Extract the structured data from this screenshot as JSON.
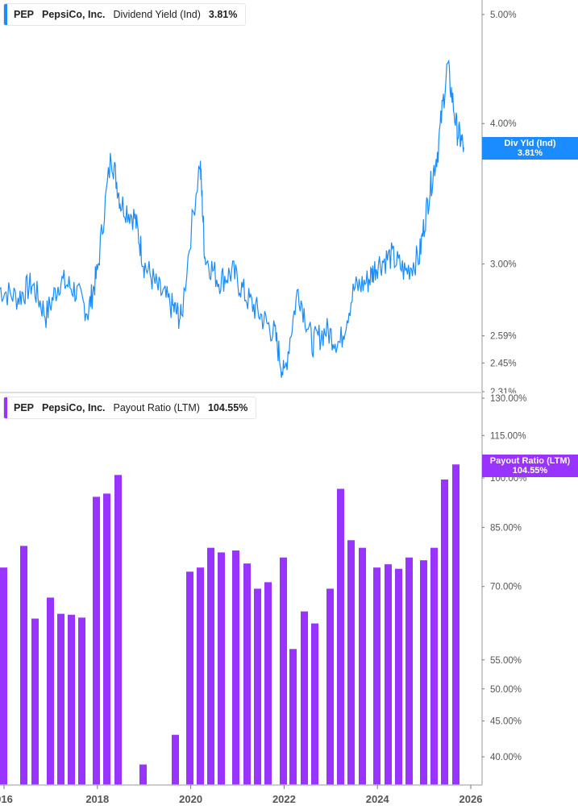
{
  "chart_data": [
    {
      "type": "line",
      "title": "PEP PepsiCo, Inc. Dividend Yield (Ind) 3.81%",
      "legend": {
        "ticker": "PEP",
        "company": "PepsiCo, Inc.",
        "metric": "Dividend Yield (Ind)",
        "value": "3.81%"
      },
      "color": "#1a8cff",
      "y_scale": "log",
      "y_ticks": [
        "5.00%",
        "4.00%",
        "3.00%",
        "2.59%",
        "2.45%",
        "2.31%"
      ],
      "ylim": [
        2.31,
        5.2
      ],
      "current_flag": {
        "label": "Div Yld (Ind)",
        "value": "3.81%"
      },
      "x": [
        2015.9,
        2016.3,
        2016.6,
        2016.9,
        2017.2,
        2017.5,
        2017.8,
        2018.0,
        2018.3,
        2018.5,
        2018.8,
        2019.0,
        2019.3,
        2019.6,
        2019.8,
        2020.2,
        2020.3,
        2020.6,
        2020.9,
        2021.2,
        2021.5,
        2021.8,
        2022.0,
        2022.3,
        2022.6,
        2022.9,
        2023.2,
        2023.5,
        2023.8,
        2024.0,
        2024.3,
        2024.6,
        2024.9,
        2025.1,
        2025.3,
        2025.5,
        2025.7,
        2025.85
      ],
      "values": [
        2.85,
        2.8,
        2.88,
        2.7,
        2.9,
        2.85,
        2.72,
        2.95,
        3.75,
        3.4,
        3.3,
        3.0,
        2.85,
        2.75,
        2.68,
        3.7,
        3.05,
        2.9,
        2.95,
        2.8,
        2.7,
        2.6,
        2.38,
        2.85,
        2.55,
        2.62,
        2.55,
        2.85,
        2.9,
        3.0,
        3.05,
        2.95,
        3.05,
        3.45,
        3.8,
        4.5,
        3.95,
        3.81
      ]
    },
    {
      "type": "bar",
      "title": "PEP PepsiCo, Inc. Payout Ratio (LTM) 104.55%",
      "legend": {
        "ticker": "PEP",
        "company": "PepsiCo, Inc.",
        "metric": "Payout Ratio (LTM)",
        "value": "104.55%"
      },
      "color": "#9933ff",
      "y_scale": "log",
      "y_ticks": [
        "130.00%",
        "115.00%",
        "100.00%",
        "85.00%",
        "70.00%",
        "55.00%",
        "50.00%",
        "45.00%",
        "40.00%"
      ],
      "ylim": [
        36,
        130
      ],
      "current_flag": {
        "label": "Payout Ratio (LTM)",
        "value": "104.55%"
      },
      "categories": [
        "2015Q4",
        "2016Q2",
        "2016Q3",
        "2016Q4",
        "2017Q1",
        "2017Q2",
        "2017Q3",
        "2017Q4",
        "2018Q1",
        "2018Q2",
        "2018Q4",
        "2019Q3",
        "2019Q4",
        "2020Q1",
        "2020Q2",
        "2020Q3",
        "2020Q4",
        "2021Q1",
        "2021Q2",
        "2021Q3",
        "2021Q4",
        "2022Q1",
        "2022Q2",
        "2022Q3",
        "2022Q4",
        "2023Q1",
        "2023Q2",
        "2023Q3",
        "2023Q4",
        "2024Q1",
        "2024Q2",
        "2024Q3",
        "2024Q4",
        "2025Q1",
        "2025Q2",
        "2025Q3"
      ],
      "values": [
        74.5,
        80,
        63,
        67.5,
        64,
        63.8,
        63.2,
        94,
        95,
        101,
        39,
        43,
        73.5,
        74.5,
        79.5,
        78.3,
        78.8,
        75.5,
        69.5,
        71,
        77,
        57,
        64.5,
        62,
        69.5,
        96.5,
        81.5,
        79.5,
        74.5,
        75.3,
        74.2,
        77,
        76.3,
        79.5,
        99.5,
        104.55
      ]
    }
  ],
  "x_axis": {
    "ticks": [
      "016",
      "2018",
      "2020",
      "2022",
      "2024",
      "2026"
    ]
  },
  "colors": {
    "yield": "#1a8cff",
    "payout": "#9933ff",
    "axis": "#999999",
    "label": "#555555"
  }
}
